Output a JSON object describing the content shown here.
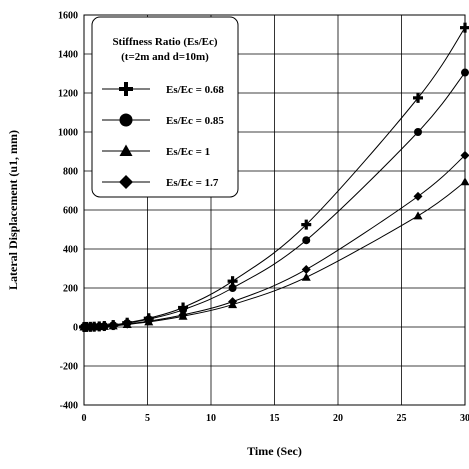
{
  "chart_data": {
    "type": "line",
    "title": "",
    "xlabel": "Time (Sec)",
    "ylabel": "Lateral Displacement (u1, mm)",
    "xlim": [
      0,
      30
    ],
    "ylim": [
      -400,
      1600
    ],
    "x_ticks": [
      0,
      5,
      10,
      15,
      20,
      25,
      30
    ],
    "y_ticks": [
      -400,
      -200,
      0,
      200,
      400,
      600,
      800,
      1000,
      1200,
      1400,
      1600
    ],
    "x_tick_labels": [
      "0",
      "5",
      "10",
      "15",
      "20",
      "25",
      "30"
    ],
    "y_tick_labels": [
      "-400",
      "-200",
      "0",
      "200",
      "400",
      "600",
      "800",
      "1000",
      "1200",
      "1400",
      "1600"
    ],
    "grid": true,
    "legend": {
      "title_line1": "Stiffness Ratio (Es/Ec)",
      "title_line2": "(t=2m and d=10m)",
      "placement": "top-left"
    },
    "x": [
      0,
      0.2,
      0.5,
      0.8,
      1.2,
      1.6,
      2.3,
      3.4,
      5.1,
      7.8,
      11.7,
      17.5,
      26.3,
      30
    ],
    "series": [
      {
        "name": "Es/Ec = 0.68",
        "marker": "plus",
        "color": "#000000",
        "values": [
          0,
          0.3,
          0.8,
          1.5,
          3,
          5,
          10,
          22,
          45,
          100,
          235,
          525,
          1175,
          1535
        ]
      },
      {
        "name": "Es/Ec = 0.85",
        "marker": "circle",
        "color": "#000000",
        "values": [
          0,
          0.3,
          0.7,
          1.3,
          2.7,
          4.5,
          9,
          20,
          40,
          88,
          200,
          445,
          1000,
          1305
        ]
      },
      {
        "name": "Es/Ec = 1",
        "marker": "triangle",
        "color": "#000000",
        "values": [
          0,
          0.2,
          0.5,
          0.9,
          1.8,
          3,
          6,
          13,
          26,
          55,
          115,
          255,
          570,
          745
        ]
      },
      {
        "name": "Es/Ec = 1.7",
        "marker": "diamond",
        "color": "#000000",
        "values": [
          0,
          0.2,
          0.6,
          1.1,
          2.1,
          3.5,
          7,
          15,
          30,
          62,
          130,
          295,
          670,
          880
        ]
      }
    ]
  }
}
